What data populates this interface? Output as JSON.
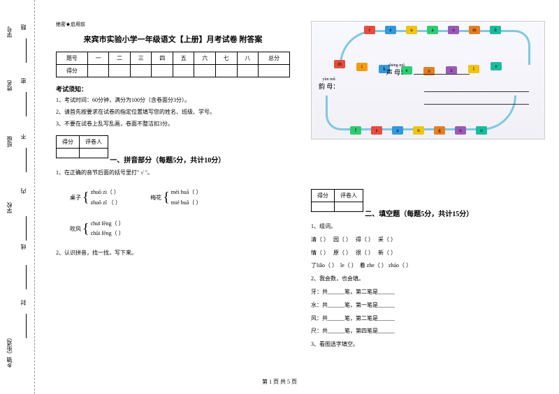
{
  "binding": {
    "labels": [
      "学号",
      "姓名",
      "班级",
      "学校",
      "乡镇（街道）"
    ],
    "dashes": [
      "题",
      "密",
      "不",
      "内",
      "线",
      "封"
    ]
  },
  "secret_label": "绝密★启用前",
  "title": "来宾市实验小学一年级语文【上册】月考试卷 附答案",
  "score_headers": [
    "题号",
    "一",
    "二",
    "三",
    "四",
    "五",
    "六",
    "七",
    "八",
    "总分"
  ],
  "score_row_label": "得分",
  "notice_title": "考试须知：",
  "notices": [
    "1、考试时间：60分钟，满分为100分（含卷面分3分）。",
    "2、请首先按要求在试卷的指定位置填写您的姓名、班级、学号。",
    "3、不要在试卷上乱写乱画，卷面不整洁扣3分。"
  ],
  "mini_table": {
    "c1": "得分",
    "c2": "评卷人"
  },
  "section1_title": "一、拼音部分（每题5分，共计10分）",
  "q1_1": "1、在正确的音节后面的括号里打\" √ \"。",
  "pinyin_groups": [
    {
      "label": "桌子",
      "opts": [
        "zhuō zi（   ）",
        "zhuō zǐ （   ）"
      ]
    },
    {
      "label": "梅花",
      "opts": [
        "méi huā（   ）",
        "mié huā（   ）"
      ]
    },
    {
      "label": "吹风",
      "opts": [
        "chuī fēng（   ）",
        "chūi fēng（   ）"
      ]
    }
  ],
  "q1_2": "2、认识拼音，找一找，写下来。",
  "train": {
    "shengmu_ruby": "shēng mǔ",
    "shengmu": "声 母：",
    "yunmu_ruby": "yùn mǔ",
    "yunmu": "韵 母：",
    "top_letters": [
      "r",
      "e",
      "u",
      "a",
      "o",
      "m",
      "ü"
    ],
    "mid_letters": [
      "zh",
      "i",
      "k",
      "e",
      "n",
      "x",
      "l",
      "e"
    ],
    "bot_letters": [
      "f",
      "s",
      "a",
      "n",
      "g",
      "u",
      "o"
    ],
    "car_colors_top": [
      "#e74c3c",
      "#3498db",
      "#f1c40f",
      "#2ecc71",
      "#9b59b6",
      "#e67e22",
      "#1abc9c"
    ],
    "car_colors_mid": [
      "#e74c3c",
      "#f39c12",
      "#3498db",
      "#2ecc71",
      "#e67e22",
      "#9b59b6",
      "#f1c40f",
      "#1abc9c"
    ],
    "car_colors_bot": [
      "#2ecc71",
      "#e74c3c",
      "#3498db",
      "#f1c40f",
      "#e67e22",
      "#9b59b6",
      "#1abc9c"
    ]
  },
  "section2_title": "二、填空题（每题5分，共计15分）",
  "q2_1_title": "1、组词。",
  "q2_1_rows": [
    [
      "清（      ）",
      "园（      ）",
      "得（      ）",
      "采（      ）"
    ],
    [
      "情（      ）",
      "原（      ）",
      "很（      ）",
      "新（      ）"
    ],
    [
      "了liǎo（      ）",
      "le（      ）",
      "着 zhe（   ）",
      "zháo（      ）"
    ]
  ],
  "q2_2_title": "2、我会数，也会填。",
  "q2_2_rows": [
    "牙：共______笔，第二笔是______",
    "水：共______笔，第一笔是______",
    "风：共______笔，第二笔是______",
    "尺：共______笔，第四笔是______"
  ],
  "q2_3": "3、看图选字填空。",
  "footer": "第 1 页 共 5 页"
}
